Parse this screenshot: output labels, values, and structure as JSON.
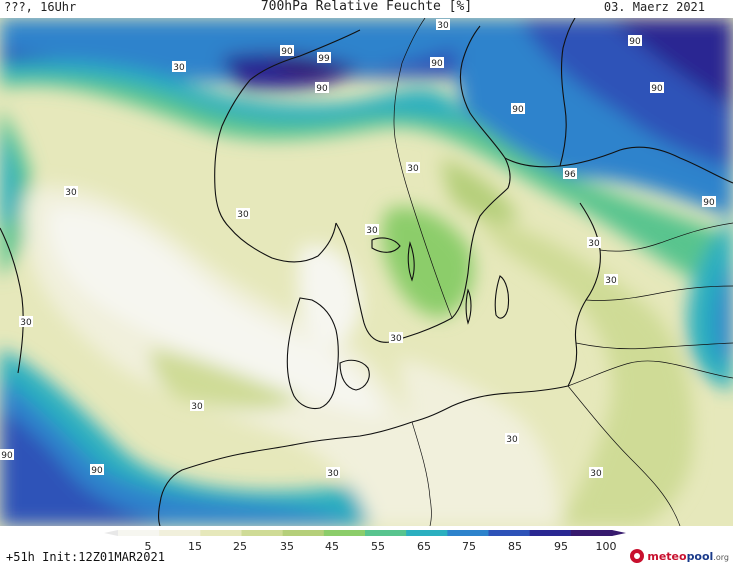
{
  "header": {
    "left": "???, 16Uhr",
    "title": "700hPa Relative Feuchte [%]",
    "date": "03. Maerz 2021"
  },
  "colorbar": {
    "ticks": [
      "5",
      "15",
      "25",
      "35",
      "45",
      "55",
      "65",
      "75",
      "85",
      "95",
      "100"
    ],
    "colors": [
      "#f6f6f0",
      "#f1f0dc",
      "#e6e8bb",
      "#cfdb96",
      "#b5cf7a",
      "#8ccd6a",
      "#58c48e",
      "#2bafbf",
      "#2d83cc",
      "#2e53b8",
      "#2a2892",
      "#371a6e"
    ]
  },
  "footer": {
    "init": "+51h Init:12Z01MAR2021",
    "brand_part1": "meteo",
    "brand_part2": "pool",
    "brand_part3": ".org"
  },
  "map_labels": [
    "30",
    "30",
    "90",
    "99",
    "90",
    "90",
    "90",
    "90",
    "90",
    "96",
    "30",
    "30",
    "30",
    "30",
    "30",
    "90",
    "30",
    "30",
    "30",
    "30",
    "30",
    "30",
    "30",
    "30",
    "30",
    "90",
    "90",
    "30",
    "30",
    "30"
  ]
}
